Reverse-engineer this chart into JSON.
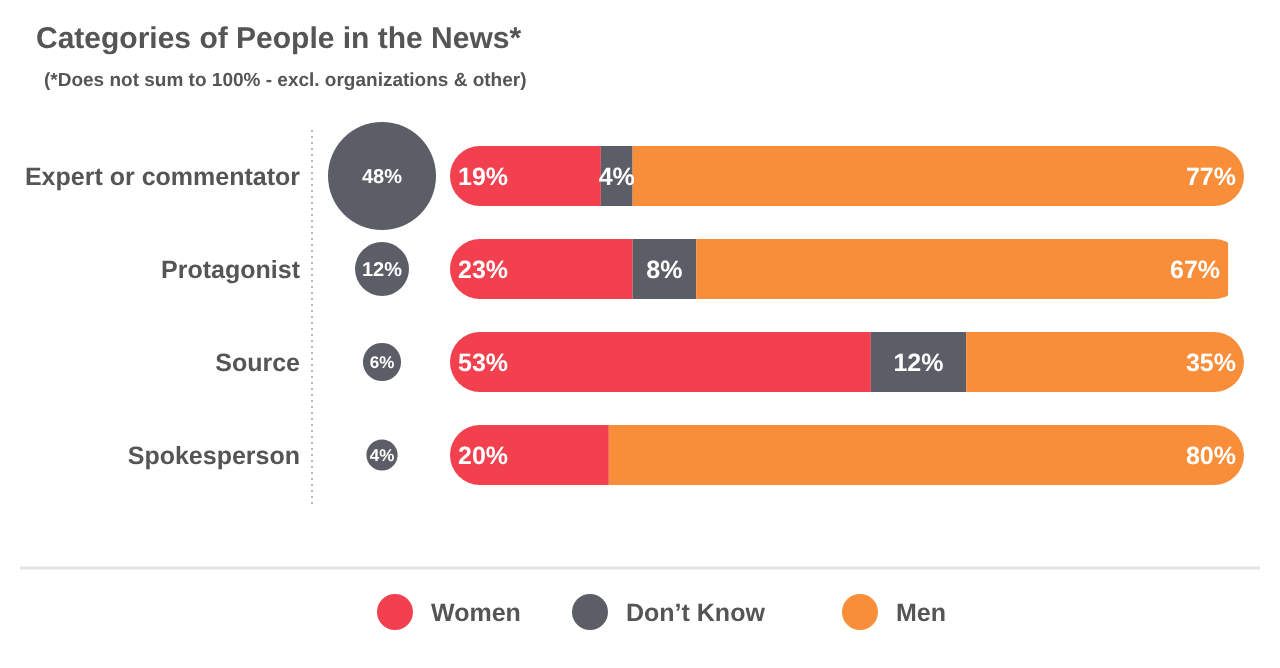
{
  "chart_data": [
    {
      "type": "other",
      "title": "Categories of People in the News*",
      "subtitle": "(*Does not sum to 100% - excl. organizations & other)",
      "values": [
        48,
        12,
        6,
        4
      ],
      "color": "#5b5e66",
      "value_labels": [
        "48%",
        "12%",
        "6%",
        "4%"
      ]
    },
    {
      "type": "bar",
      "orientation": "horizontal",
      "stacked": true,
      "categories": [
        "Expert or commentator",
        "Protagonist",
        "Source",
        "Spokesperson"
      ],
      "xlim": [
        0,
        100
      ],
      "legend": "bottom",
      "series": [
        {
          "name": "Women",
          "color": "#f2404e",
          "values": [
            19,
            23,
            53,
            20
          ],
          "value_labels": [
            "19%",
            "23%",
            "53%",
            "20%"
          ]
        },
        {
          "name": "Don’t Know",
          "color": "#5b5e66",
          "values": [
            4,
            8,
            12,
            null
          ],
          "value_labels": [
            "4%",
            "8%",
            "12%",
            null
          ]
        },
        {
          "name": "Men",
          "color": "#f98e3a",
          "values": [
            77,
            67,
            35,
            80
          ],
          "value_labels": [
            "77%",
            "67%",
            "35%",
            "80%"
          ]
        }
      ]
    }
  ]
}
